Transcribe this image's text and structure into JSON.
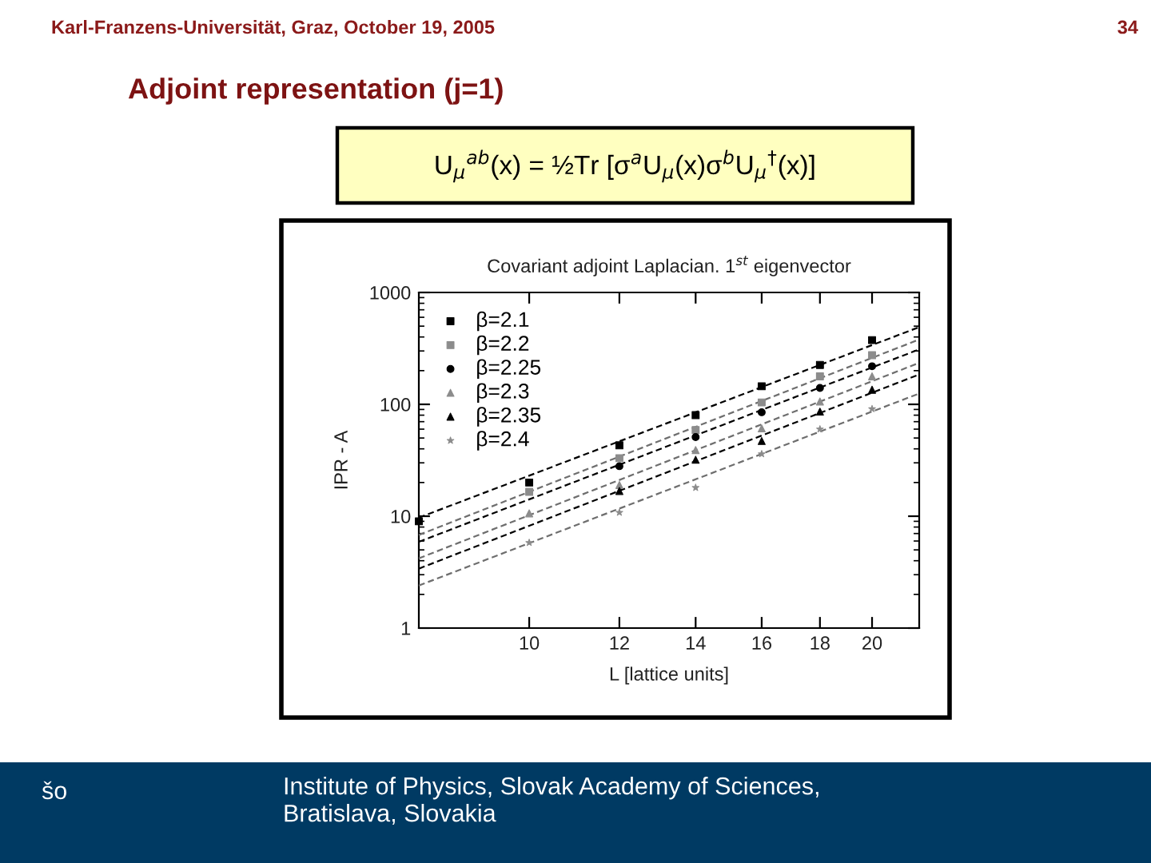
{
  "chart_data": {
    "type": "scatter",
    "title": "Adjoint representation (j=1)",
    "subtitle": "Covariant adjoint Laplacian. 1$^{st}$ eigenvector",
    "xlabel": "L [lattice units]",
    "ylabel": "IPR - A",
    "annotations": [
      "Karl-Franzens-Universität, Graz, October 19, 2005",
      "34",
      "U$_{μ}$$^{ab}$(x) = ½Tr [σ$^{a}$U$_{μ}$(x)σ$^{b}$U$_{μ}$$^{†}$(x)]",
      "šo",
      "Institute of Physics, Slovak Academy of Sciences,\nBratislava, Slovakia"
    ],
    "log": "xy",
    "xlim": [
      8,
      22
    ],
    "xticks": [
      10,
      12,
      14,
      16,
      18,
      20
    ],
    "ylim": [
      1,
      1000
    ],
    "yticks": [
      1,
      10,
      100,
      1000
    ],
    "legend": "top left",
    "series": [
      {
        "name": "β=2.1",
        "marker": "square",
        "color": "#000000",
        "x": [
          8,
          10,
          12,
          14,
          16,
          18,
          20
        ],
        "values": [
          9,
          20,
          43,
          80,
          145,
          225,
          375
        ]
      },
      {
        "name": "β=2.2",
        "marker": "square",
        "color": "#8c8c8c",
        "x": [
          10,
          12,
          14,
          16,
          18,
          20
        ],
        "values": [
          16.5,
          33,
          59,
          104,
          178,
          275
        ]
      },
      {
        "name": "β=2.25",
        "marker": "circle",
        "color": "#000000",
        "x": [
          12,
          14,
          16,
          18,
          20
        ],
        "values": [
          28,
          51,
          85,
          140,
          219
        ]
      },
      {
        "name": "β=2.3",
        "marker": "triangle",
        "color": "#8c8c8c",
        "x": [
          10,
          12,
          14,
          16,
          18,
          20
        ],
        "values": [
          10.6,
          19,
          39,
          61,
          106,
          178
        ]
      },
      {
        "name": "β=2.35",
        "marker": "triangle",
        "color": "#000000",
        "x": [
          12,
          14,
          16,
          18,
          20
        ],
        "values": [
          16.8,
          32,
          47,
          86,
          135
        ]
      },
      {
        "name": "β=2.4",
        "marker": "star",
        "color": "#8c8c8c",
        "x": [
          10,
          12,
          14,
          16,
          18,
          20
        ],
        "values": [
          5.8,
          10.8,
          18,
          36,
          60,
          91
        ]
      },
      {
        "type": "line",
        "line_style": "dashed",
        "marker": "none",
        "color": "#000000",
        "x": [
          8,
          22
        ],
        "values": [
          9.7,
          490
        ]
      },
      {
        "type": "line",
        "line_style": "dashed",
        "marker": "none",
        "color": "#6e6e6e",
        "x": [
          8,
          22
        ],
        "values": [
          6.8,
          380
        ]
      },
      {
        "type": "line",
        "line_style": "dashed",
        "marker": "none",
        "color": "#000000",
        "x": [
          8,
          22
        ],
        "values": [
          5.9,
          310
        ]
      },
      {
        "type": "line",
        "line_style": "dashed",
        "marker": "none",
        "color": "#6e6e6e",
        "x": [
          8,
          22
        ],
        "values": [
          4.2,
          235
        ]
      },
      {
        "type": "line",
        "line_style": "dashed",
        "marker": "none",
        "color": "#000000",
        "x": [
          8,
          22
        ],
        "values": [
          3.4,
          185
        ]
      },
      {
        "type": "line",
        "line_style": "dashed",
        "marker": "none",
        "color": "#6e6e6e",
        "x": [
          8,
          22
        ],
        "values": [
          2.4,
          125
        ]
      }
    ]
  }
}
